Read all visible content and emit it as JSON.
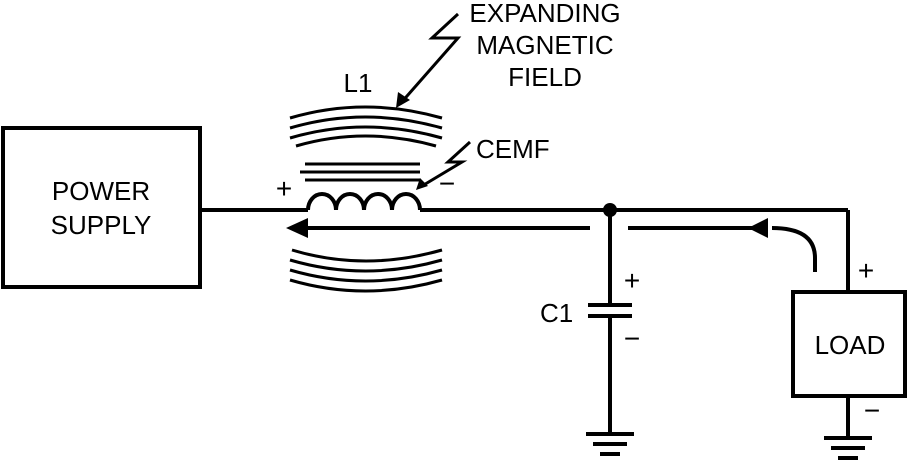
{
  "diagram": {
    "labels": {
      "power_supply_line1": "POWER",
      "power_supply_line2": "SUPPLY",
      "inductor": "L1",
      "field_line1": "EXPANDING",
      "field_line2": "MAGNETIC",
      "field_line3": "FIELD",
      "cemf": "CEMF",
      "capacitor": "C1",
      "load": "LOAD",
      "inductor_plus": "+",
      "inductor_minus": "−",
      "capacitor_plus": "+",
      "capacitor_minus": "−",
      "load_plus": "+",
      "load_minus": "−"
    },
    "colors": {
      "ink": "#000000",
      "background": "#ffffff"
    }
  }
}
